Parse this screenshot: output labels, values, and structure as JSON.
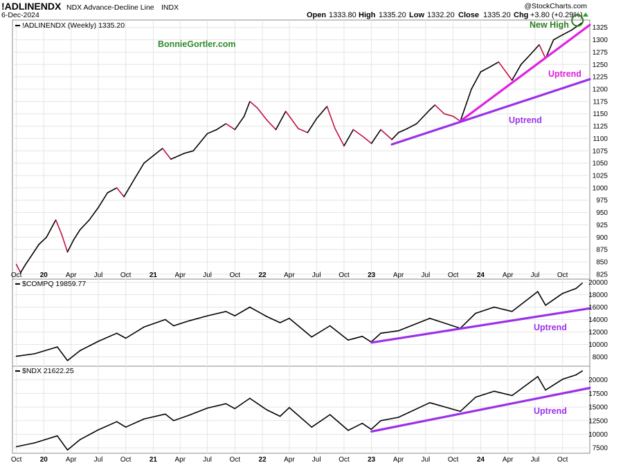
{
  "header": {
    "symbol": "!ADLINENDX",
    "description": "NDX Advance-Decline Line",
    "exchange": "INDX",
    "date": "6-Dec-2024",
    "brand": "@StockCharts.com",
    "ohlc": {
      "open_label": "Open",
      "open": "1333.80",
      "high_label": "High",
      "high": "1335.20",
      "low_label": "Low",
      "low": "1332.20",
      "close_label": "Close",
      "close": "1335.20",
      "chg_label": "Chg",
      "chg": "+3.80 (+0.29%)"
    }
  },
  "watermark": "BonnieGortler.com",
  "colors": {
    "line": "#000000",
    "down_line": "#c01040",
    "magenta": "#e020e0",
    "purple": "#9b30e8",
    "green": "#2e7d22"
  },
  "chart_data": [
    {
      "type": "line",
      "label": "!ADLINENDX (Weekly) 1335.20",
      "ylim": [
        815,
        1340
      ],
      "yticks": [
        825,
        850,
        875,
        900,
        925,
        950,
        975,
        1000,
        1025,
        1050,
        1075,
        1100,
        1125,
        1150,
        1175,
        1200,
        1225,
        1250,
        1275,
        1300,
        1325
      ],
      "x_axis": [
        "Oct",
        "20",
        "Apr",
        "Jul",
        "Oct",
        "21",
        "Apr",
        "Jul",
        "Oct",
        "22",
        "Apr",
        "Jul",
        "Oct",
        "23",
        "Apr",
        "Jul",
        "Oct",
        "24",
        "Apr",
        "Jul",
        "Oct"
      ],
      "series_points": [
        [
          "2019-10-01",
          845
        ],
        [
          "2019-10-15",
          828
        ],
        [
          "2019-11-01",
          845
        ],
        [
          "2019-11-20",
          862
        ],
        [
          "2019-12-15",
          885
        ],
        [
          "2020-01-10",
          900
        ],
        [
          "2020-02-10",
          935
        ],
        [
          "2020-03-01",
          905
        ],
        [
          "2020-03-20",
          870
        ],
        [
          "2020-04-10",
          895
        ],
        [
          "2020-05-01",
          915
        ],
        [
          "2020-06-01",
          935
        ],
        [
          "2020-07-01",
          960
        ],
        [
          "2020-08-01",
          990
        ],
        [
          "2020-09-01",
          1000
        ],
        [
          "2020-09-25",
          982
        ],
        [
          "2020-11-01",
          1020
        ],
        [
          "2020-12-01",
          1050
        ],
        [
          "2021-01-01",
          1065
        ],
        [
          "2021-02-01",
          1080
        ],
        [
          "2021-03-01",
          1058
        ],
        [
          "2021-04-15",
          1070
        ],
        [
          "2021-05-15",
          1075
        ],
        [
          "2021-07-01",
          1110
        ],
        [
          "2021-08-01",
          1118
        ],
        [
          "2021-09-01",
          1130
        ],
        [
          "2021-10-01",
          1118
        ],
        [
          "2021-11-01",
          1145
        ],
        [
          "2021-11-20",
          1175
        ],
        [
          "2021-12-15",
          1162
        ],
        [
          "2022-01-15",
          1138
        ],
        [
          "2022-02-15",
          1118
        ],
        [
          "2022-03-20",
          1155
        ],
        [
          "2022-05-01",
          1120
        ],
        [
          "2022-06-01",
          1112
        ],
        [
          "2022-07-01",
          1140
        ],
        [
          "2022-08-05",
          1165
        ],
        [
          "2022-09-01",
          1120
        ],
        [
          "2022-10-01",
          1085
        ],
        [
          "2022-11-01",
          1118
        ],
        [
          "2022-12-01",
          1105
        ],
        [
          "2023-01-01",
          1090
        ],
        [
          "2023-02-01",
          1118
        ],
        [
          "2023-03-10",
          1098
        ],
        [
          "2023-04-01",
          1112
        ],
        [
          "2023-05-01",
          1120
        ],
        [
          "2023-06-01",
          1130
        ],
        [
          "2023-07-15",
          1158
        ],
        [
          "2023-08-01",
          1168
        ],
        [
          "2023-09-01",
          1150
        ],
        [
          "2023-10-01",
          1145
        ],
        [
          "2023-10-25",
          1135
        ],
        [
          "2023-12-01",
          1200
        ],
        [
          "2024-01-01",
          1235
        ],
        [
          "2024-02-01",
          1245
        ],
        [
          "2024-03-01",
          1255
        ],
        [
          "2024-04-15",
          1218
        ],
        [
          "2024-05-15",
          1250
        ],
        [
          "2024-06-15",
          1270
        ],
        [
          "2024-07-15",
          1290
        ],
        [
          "2024-08-05",
          1262
        ],
        [
          "2024-09-01",
          1300
        ],
        [
          "2024-10-01",
          1310
        ],
        [
          "2024-11-01",
          1320
        ],
        [
          "2024-12-06",
          1335
        ]
      ],
      "annotations": [
        {
          "text": "New High",
          "color": "green"
        },
        {
          "text": "Uptrend",
          "color": "magenta",
          "from": [
            "2023-10-25",
            1135
          ],
          "to": [
            "2024-12-31",
            1330
          ]
        },
        {
          "text": "Uptrend",
          "color": "purple",
          "from": [
            "2023-03-10",
            1088
          ],
          "to": [
            "2024-12-31",
            1220
          ]
        }
      ]
    },
    {
      "type": "line",
      "label": "$COMPQ 19859.77",
      "ylim": [
        6500,
        20500
      ],
      "yticks": [
        8000,
        10000,
        12000,
        14000,
        16000,
        18000,
        20000
      ],
      "series_points": [
        [
          "2019-10-01",
          8100
        ],
        [
          "2019-12-01",
          8500
        ],
        [
          "2020-02-15",
          9600
        ],
        [
          "2020-03-20",
          7400
        ],
        [
          "2020-05-01",
          9000
        ],
        [
          "2020-07-01",
          10500
        ],
        [
          "2020-09-01",
          11800
        ],
        [
          "2020-10-01",
          11000
        ],
        [
          "2020-12-01",
          12800
        ],
        [
          "2021-02-10",
          14000
        ],
        [
          "2021-03-10",
          13000
        ],
        [
          "2021-05-01",
          13800
        ],
        [
          "2021-07-01",
          14600
        ],
        [
          "2021-09-01",
          15300
        ],
        [
          "2021-10-01",
          14600
        ],
        [
          "2021-11-20",
          16000
        ],
        [
          "2022-01-15",
          14500
        ],
        [
          "2022-03-01",
          13500
        ],
        [
          "2022-04-01",
          14200
        ],
        [
          "2022-06-15",
          11200
        ],
        [
          "2022-08-15",
          13000
        ],
        [
          "2022-10-15",
          10700
        ],
        [
          "2022-12-01",
          11300
        ],
        [
          "2022-12-31",
          10400
        ],
        [
          "2023-02-01",
          11800
        ],
        [
          "2023-04-01",
          12200
        ],
        [
          "2023-07-15",
          14200
        ],
        [
          "2023-10-25",
          12600
        ],
        [
          "2023-12-15",
          15000
        ],
        [
          "2024-02-15",
          16000
        ],
        [
          "2024-04-15",
          15300
        ],
        [
          "2024-07-10",
          18500
        ],
        [
          "2024-08-05",
          16300
        ],
        [
          "2024-10-01",
          18200
        ],
        [
          "2024-11-15",
          19000
        ],
        [
          "2024-12-06",
          19860
        ]
      ],
      "annotations": [
        {
          "text": "Uptrend",
          "color": "purple",
          "from": [
            "2023-01-01",
            10300
          ],
          "to": [
            "2024-12-31",
            15800
          ]
        }
      ]
    },
    {
      "type": "line",
      "label": "$NDX 21622.25",
      "ylim": [
        6500,
        22500
      ],
      "yticks": [
        7500,
        10000,
        12500,
        15000,
        17500,
        20000
      ],
      "series_points": [
        [
          "2019-10-01",
          7700
        ],
        [
          "2019-12-01",
          8400
        ],
        [
          "2020-02-15",
          9700
        ],
        [
          "2020-03-20",
          7100
        ],
        [
          "2020-05-01",
          9000
        ],
        [
          "2020-07-01",
          10800
        ],
        [
          "2020-09-01",
          12300
        ],
        [
          "2020-10-01",
          11300
        ],
        [
          "2020-12-01",
          12800
        ],
        [
          "2021-02-10",
          13700
        ],
        [
          "2021-03-10",
          12500
        ],
        [
          "2021-05-01",
          13500
        ],
        [
          "2021-07-01",
          14800
        ],
        [
          "2021-09-01",
          15600
        ],
        [
          "2021-10-01",
          14700
        ],
        [
          "2021-11-20",
          16600
        ],
        [
          "2022-01-15",
          14500
        ],
        [
          "2022-03-01",
          13300
        ],
        [
          "2022-04-01",
          14900
        ],
        [
          "2022-06-15",
          11300
        ],
        [
          "2022-08-15",
          13600
        ],
        [
          "2022-10-15",
          10700
        ],
        [
          "2022-12-01",
          12000
        ],
        [
          "2022-12-31",
          10900
        ],
        [
          "2023-02-01",
          12500
        ],
        [
          "2023-04-01",
          13100
        ],
        [
          "2023-07-15",
          15800
        ],
        [
          "2023-10-25",
          14200
        ],
        [
          "2023-12-15",
          16800
        ],
        [
          "2024-02-15",
          17900
        ],
        [
          "2024-04-15",
          17100
        ],
        [
          "2024-07-10",
          20600
        ],
        [
          "2024-08-05",
          18100
        ],
        [
          "2024-10-01",
          20100
        ],
        [
          "2024-11-15",
          20900
        ],
        [
          "2024-12-06",
          21622
        ]
      ],
      "annotations": [
        {
          "text": "Uptrend",
          "color": "purple",
          "from": [
            "2023-01-01",
            10500
          ],
          "to": [
            "2024-12-31",
            18500
          ]
        }
      ]
    }
  ]
}
